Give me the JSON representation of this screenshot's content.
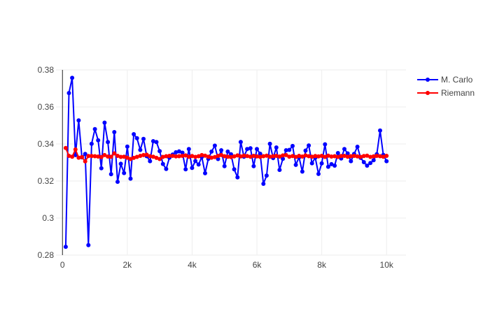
{
  "chart_data": {
    "type": "line",
    "title": "",
    "xlabel": "",
    "ylabel": "",
    "xlim": [
      -200,
      10600
    ],
    "ylim": [
      0.28,
      0.38
    ],
    "x_ticks": [
      0,
      2000,
      4000,
      6000,
      8000,
      10000
    ],
    "x_tick_labels": [
      "0",
      "2k",
      "4k",
      "6k",
      "8k",
      "10k"
    ],
    "y_ticks": [
      0.28,
      0.3,
      0.32,
      0.34,
      0.36,
      0.38
    ],
    "y_tick_labels": [
      "0.28",
      "0.3",
      "0.32",
      "0.34",
      "0.36",
      "0.38"
    ],
    "grid": true,
    "legend_position": "top-right",
    "x": [
      100,
      200,
      300,
      400,
      500,
      600,
      700,
      800,
      900,
      1000,
      1100,
      1200,
      1300,
      1400,
      1500,
      1600,
      1700,
      1800,
      1900,
      2000,
      2100,
      2200,
      2300,
      2400,
      2500,
      2600,
      2700,
      2800,
      2900,
      3000,
      3100,
      3200,
      3300,
      3400,
      3500,
      3600,
      3700,
      3800,
      3900,
      4000,
      4100,
      4200,
      4300,
      4400,
      4500,
      4600,
      4700,
      4800,
      4900,
      5000,
      5100,
      5200,
      5300,
      5400,
      5500,
      5600,
      5700,
      5800,
      5900,
      6000,
      6100,
      6200,
      6300,
      6400,
      6500,
      6600,
      6700,
      6800,
      6900,
      7000,
      7100,
      7200,
      7300,
      7400,
      7500,
      7600,
      7700,
      7800,
      7900,
      8000,
      8100,
      8200,
      8300,
      8400,
      8500,
      8600,
      8700,
      8800,
      8900,
      9000,
      9100,
      9200,
      9300,
      9400,
      9500,
      9600,
      9700,
      9800,
      9900,
      10000
    ],
    "series": [
      {
        "name": "M. Carlo",
        "color": "#0000ff",
        "values": [
          0.2845,
          0.3675,
          0.3757,
          0.334,
          0.3527,
          0.3328,
          0.3346,
          0.2854,
          0.3401,
          0.348,
          0.342,
          0.3269,
          0.3515,
          0.341,
          0.3237,
          0.3464,
          0.3196,
          0.3293,
          0.3243,
          0.3386,
          0.3213,
          0.3453,
          0.3431,
          0.3368,
          0.3427,
          0.3334,
          0.3307,
          0.3415,
          0.341,
          0.3361,
          0.3292,
          0.3265,
          0.3326,
          0.3343,
          0.3355,
          0.336,
          0.3353,
          0.3263,
          0.3373,
          0.3271,
          0.3308,
          0.3289,
          0.333,
          0.3242,
          0.332,
          0.3359,
          0.3391,
          0.3319,
          0.3366,
          0.328,
          0.3359,
          0.3344,
          0.3263,
          0.322,
          0.3411,
          0.3331,
          0.3373,
          0.3377,
          0.328,
          0.3373,
          0.3347,
          0.3185,
          0.3229,
          0.3401,
          0.3324,
          0.3381,
          0.326,
          0.332,
          0.3366,
          0.3368,
          0.3389,
          0.3287,
          0.3328,
          0.3251,
          0.3364,
          0.3392,
          0.3296,
          0.3326,
          0.3238,
          0.3295,
          0.3398,
          0.3277,
          0.3291,
          0.3283,
          0.3351,
          0.3322,
          0.3373,
          0.3349,
          0.3307,
          0.3346,
          0.3385,
          0.3325,
          0.3302,
          0.3283,
          0.3297,
          0.3312,
          0.3345,
          0.3473,
          0.3341,
          0.3307
        ]
      },
      {
        "name": "Riemann",
        "color": "#ff0000",
        "values": [
          0.3378,
          0.3336,
          0.3331,
          0.337,
          0.3326,
          0.3329,
          0.3306,
          0.3335,
          0.3335,
          0.3334,
          0.3332,
          0.3329,
          0.334,
          0.3332,
          0.3331,
          0.3349,
          0.3336,
          0.333,
          0.3331,
          0.3326,
          0.3319,
          0.3325,
          0.333,
          0.3336,
          0.334,
          0.3342,
          0.3334,
          0.3331,
          0.3325,
          0.3319,
          0.333,
          0.3334,
          0.3336,
          0.3336,
          0.3333,
          0.3334,
          0.3336,
          0.3338,
          0.3331,
          0.3335,
          0.333,
          0.3334,
          0.334,
          0.3337,
          0.3331,
          0.3326,
          0.3329,
          0.3336,
          0.334,
          0.3334,
          0.3331,
          0.3329,
          0.3333,
          0.3338,
          0.3333,
          0.3337,
          0.3335,
          0.3331,
          0.3336,
          0.3333,
          0.333,
          0.3334,
          0.3337,
          0.3331,
          0.3334,
          0.3336,
          0.3332,
          0.3338,
          0.334,
          0.3331,
          0.3335,
          0.333,
          0.3336,
          0.3332,
          0.3338,
          0.3334,
          0.3331,
          0.3335,
          0.3333,
          0.3336,
          0.333,
          0.3337,
          0.3332,
          0.3334,
          0.333,
          0.3335,
          0.3336,
          0.3331,
          0.3334,
          0.3336,
          0.3333,
          0.333,
          0.3335,
          0.3337,
          0.333,
          0.3333,
          0.3336,
          0.3334,
          0.3331,
          0.3336
        ]
      }
    ]
  }
}
